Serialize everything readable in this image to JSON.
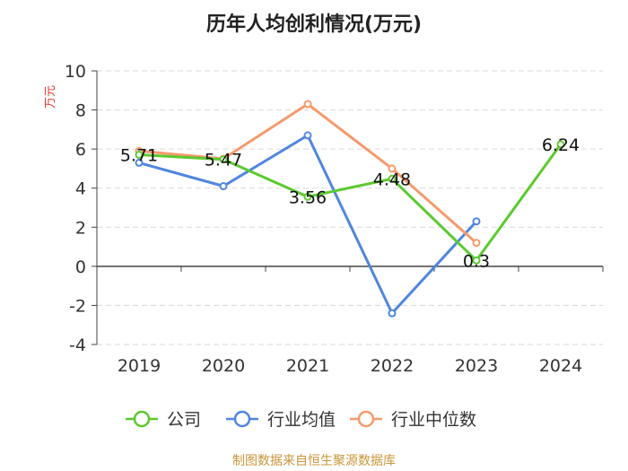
{
  "chart_data": {
    "type": "line",
    "title": "历年人均创利情况(万元)",
    "ylabel": "万元",
    "xlabel": "",
    "ylim": [
      -4,
      10
    ],
    "yticks": [
      -4,
      -2,
      0,
      2,
      4,
      6,
      8,
      10
    ],
    "categories": [
      "2019",
      "2020",
      "2021",
      "2022",
      "2023",
      "2024"
    ],
    "grid": true,
    "legend_position": "bottom",
    "series": [
      {
        "name": "公司",
        "color": "#5cc92f",
        "values": [
          5.71,
          5.47,
          3.56,
          4.48,
          0.3,
          6.24
        ],
        "labels": [
          "5.71",
          "5.47",
          "3.56",
          "4.48",
          "0.3",
          "6.24"
        ]
      },
      {
        "name": "行业均值",
        "color": "#4f86de",
        "values": [
          5.3,
          4.1,
          6.7,
          -2.4,
          2.3,
          null
        ]
      },
      {
        "name": "行业中位数",
        "color": "#f59a6c",
        "values": [
          5.9,
          5.5,
          8.3,
          5.0,
          1.2,
          null
        ]
      }
    ],
    "source": "制图数据来自恒生聚源数据库"
  }
}
